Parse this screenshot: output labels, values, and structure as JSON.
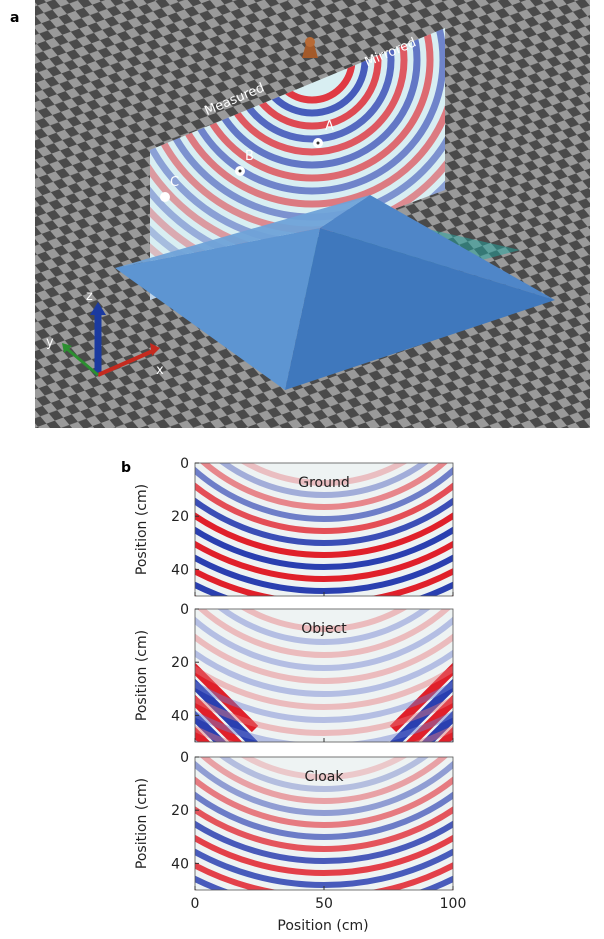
{
  "panel_a": {
    "label": "a",
    "plane_labels": [
      "Measured",
      "Mirrored"
    ],
    "points": [
      "A",
      "B",
      "C"
    ],
    "axes": [
      "x",
      "y",
      "z"
    ]
  },
  "panel_b": {
    "label": "b",
    "xlabel": "Position (cm)",
    "ylabel": "Position (cm)",
    "xlim": [
      0,
      100
    ],
    "xticks": [
      0,
      50,
      100
    ],
    "ylim": [
      50,
      0
    ],
    "yticks": [
      0,
      20,
      40
    ],
    "plots": [
      "Ground",
      "Object",
      "Cloak"
    ]
  }
}
